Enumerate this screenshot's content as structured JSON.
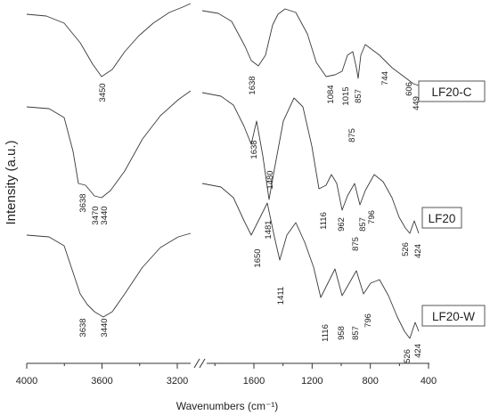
{
  "chart_data": {
    "type": "line",
    "xlabel": "Wavenumbers (cm⁻¹)",
    "ylabel": "Intensity (a.u.)",
    "x_axis": {
      "reversed": true,
      "broken": true,
      "left_segment_range": [
        4000,
        2750
      ],
      "right_segment_range": [
        1850,
        400
      ],
      "tick_labels": [
        "4000",
        "3600",
        "3200",
        "1600",
        "1200",
        "800",
        "400"
      ]
    },
    "series": [
      {
        "name": "LF20-C",
        "absorption_bands": [
          "3450",
          "1638",
          "1084",
          "1015",
          "875",
          "857",
          "744",
          "606",
          "449"
        ]
      },
      {
        "name": "LF20",
        "absorption_bands": [
          "3638",
          "3470",
          "3440",
          "1638",
          "1480",
          "1481",
          "1116",
          "962",
          "875",
          "857",
          "796",
          "526",
          "424"
        ]
      },
      {
        "name": "LF20-W",
        "absorption_bands": [
          "3638",
          "3440",
          "1650",
          "1411",
          "1116",
          "958",
          "857",
          "796",
          "526",
          "424"
        ]
      }
    ]
  }
}
